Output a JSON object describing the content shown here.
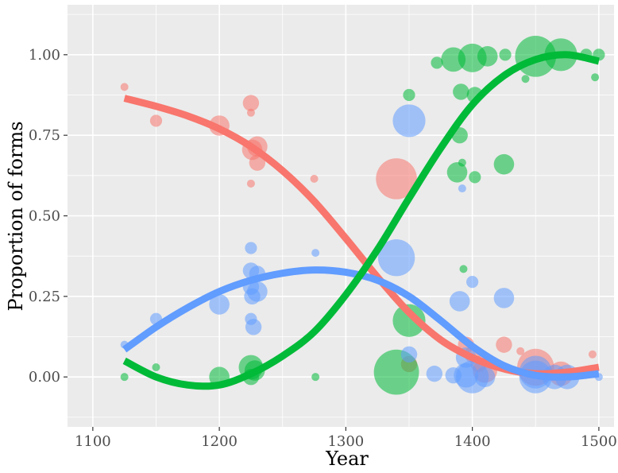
{
  "chart_data": {
    "type": "scatter",
    "title": "",
    "xlabel": "Year",
    "ylabel": "Proportion of forms",
    "xlim": [
      1080,
      1512
    ],
    "ylim": [
      -0.155,
      1.155
    ],
    "x_ticks": [
      1100,
      1200,
      1300,
      1400,
      1500
    ],
    "x_tick_labels": [
      "1100",
      "1200",
      "1300",
      "1400",
      "1500"
    ],
    "y_ticks": [
      0,
      0.25,
      0.5,
      0.75,
      1.0
    ],
    "y_tick_labels": [
      "0.00",
      "0.25",
      "0.50",
      "0.75",
      "1.00"
    ],
    "grid": true,
    "legend": "none",
    "colors": {
      "red": "#F8766D",
      "green": "#00BA38",
      "blue": "#619CFF",
      "panel_background": "#EBEBEB",
      "grid": "#FFFFFF"
    },
    "series": [
      {
        "key": "red",
        "color": "#F8766D",
        "points": [
          [
            1125,
            0.9,
            1
          ],
          [
            1150,
            0.795,
            2
          ],
          [
            1200,
            0.78,
            4
          ],
          [
            1225,
            0.85,
            3
          ],
          [
            1225,
            0.82,
            1
          ],
          [
            1225,
            0.6,
            1
          ],
          [
            1226,
            0.705,
            4
          ],
          [
            1230,
            0.715,
            4
          ],
          [
            1230,
            0.665,
            3
          ],
          [
            1275,
            0.615,
            1
          ],
          [
            1340,
            0.615,
            9
          ],
          [
            1350,
            0.04,
            3
          ],
          [
            1395,
            0.1,
            3
          ],
          [
            1400,
            0.07,
            3
          ],
          [
            1405,
            0.04,
            3
          ],
          [
            1410,
            0.02,
            5
          ],
          [
            1425,
            0.1,
            3
          ],
          [
            1438,
            0.08,
            1
          ],
          [
            1450,
            0.03,
            8
          ],
          [
            1470,
            0.01,
            5
          ],
          [
            1495,
            0.07,
            1
          ]
        ],
        "trend": [
          [
            1125,
            0.865
          ],
          [
            1150,
            0.84
          ],
          [
            1175,
            0.81
          ],
          [
            1200,
            0.77
          ],
          [
            1225,
            0.715
          ],
          [
            1250,
            0.64
          ],
          [
            1275,
            0.545
          ],
          [
            1300,
            0.43
          ],
          [
            1325,
            0.31
          ],
          [
            1350,
            0.2
          ],
          [
            1375,
            0.115
          ],
          [
            1400,
            0.06
          ],
          [
            1425,
            0.025
          ],
          [
            1450,
            0.01
          ],
          [
            1475,
            0.015
          ],
          [
            1500,
            0.03
          ]
        ]
      },
      {
        "key": "green",
        "color": "#00BA38",
        "points": [
          [
            1125,
            0.0,
            1
          ],
          [
            1150,
            0.03,
            1
          ],
          [
            1200,
            0.0,
            4
          ],
          [
            1225,
            0.03,
            5
          ],
          [
            1225,
            0.0,
            3
          ],
          [
            1228,
            0.02,
            4
          ],
          [
            1276,
            0.0,
            1
          ],
          [
            1340,
            0.015,
            10
          ],
          [
            1350,
            0.175,
            7
          ],
          [
            1350,
            0.875,
            2
          ],
          [
            1372,
            0.975,
            2
          ],
          [
            1385,
            0.985,
            5
          ],
          [
            1388,
            0.635,
            4
          ],
          [
            1390,
            0.75,
            3
          ],
          [
            1391,
            0.885,
            3
          ],
          [
            1392,
            0.665,
            1
          ],
          [
            1393,
            0.335,
            1
          ],
          [
            1400,
            0.99,
            6
          ],
          [
            1402,
            0.875,
            3
          ],
          [
            1402,
            0.62,
            2
          ],
          [
            1412,
            0.995,
            4
          ],
          [
            1425,
            0.66,
            4
          ],
          [
            1426,
            1.0,
            2
          ],
          [
            1442,
            0.925,
            1
          ],
          [
            1450,
            0.995,
            9
          ],
          [
            1470,
            1.0,
            7
          ],
          [
            1490,
            1.0,
            2
          ],
          [
            1497,
            0.93,
            1
          ],
          [
            1500,
            1.0,
            2
          ]
        ],
        "trend": [
          [
            1125,
            0.05
          ],
          [
            1150,
            0.0
          ],
          [
            1175,
            -0.025
          ],
          [
            1200,
            -0.025
          ],
          [
            1225,
            0.01
          ],
          [
            1250,
            0.065
          ],
          [
            1275,
            0.14
          ],
          [
            1300,
            0.255
          ],
          [
            1325,
            0.395
          ],
          [
            1350,
            0.555
          ],
          [
            1375,
            0.71
          ],
          [
            1400,
            0.845
          ],
          [
            1425,
            0.935
          ],
          [
            1450,
            0.985
          ],
          [
            1475,
            1.0
          ],
          [
            1500,
            0.98
          ]
        ]
      },
      {
        "key": "blue",
        "color": "#619CFF",
        "points": [
          [
            1125,
            0.1,
            1
          ],
          [
            1150,
            0.18,
            2
          ],
          [
            1200,
            0.225,
            4
          ],
          [
            1225,
            0.4,
            2
          ],
          [
            1225,
            0.33,
            3
          ],
          [
            1225,
            0.28,
            3
          ],
          [
            1225,
            0.18,
            2
          ],
          [
            1226,
            0.25,
            3
          ],
          [
            1227,
            0.155,
            3
          ],
          [
            1230,
            0.32,
            3
          ],
          [
            1230,
            0.265,
            4
          ],
          [
            1276,
            0.385,
            1
          ],
          [
            1340,
            0.37,
            8
          ],
          [
            1350,
            0.795,
            7
          ],
          [
            1350,
            0.07,
            3
          ],
          [
            1370,
            0.01,
            3
          ],
          [
            1385,
            0.005,
            3
          ],
          [
            1390,
            0.235,
            4
          ],
          [
            1392,
            0.585,
            1
          ],
          [
            1395,
            0.06,
            4
          ],
          [
            1395,
            0.005,
            5
          ],
          [
            1400,
            0.295,
            2
          ],
          [
            1400,
            0.0,
            7
          ],
          [
            1410,
            0.0,
            4
          ],
          [
            1425,
            0.245,
            4
          ],
          [
            1450,
            0.015,
            7
          ],
          [
            1450,
            0.0,
            7
          ],
          [
            1465,
            0.0,
            5
          ],
          [
            1475,
            0.0,
            5
          ],
          [
            1500,
            0.0,
            1
          ]
        ],
        "trend": [
          [
            1125,
            0.085
          ],
          [
            1150,
            0.155
          ],
          [
            1175,
            0.215
          ],
          [
            1200,
            0.265
          ],
          [
            1225,
            0.3
          ],
          [
            1250,
            0.322
          ],
          [
            1275,
            0.332
          ],
          [
            1300,
            0.325
          ],
          [
            1325,
            0.3
          ],
          [
            1350,
            0.25
          ],
          [
            1375,
            0.175
          ],
          [
            1400,
            0.095
          ],
          [
            1425,
            0.035
          ],
          [
            1450,
            0.005
          ],
          [
            1475,
            0.0
          ],
          [
            1500,
            0.01
          ]
        ]
      }
    ]
  }
}
